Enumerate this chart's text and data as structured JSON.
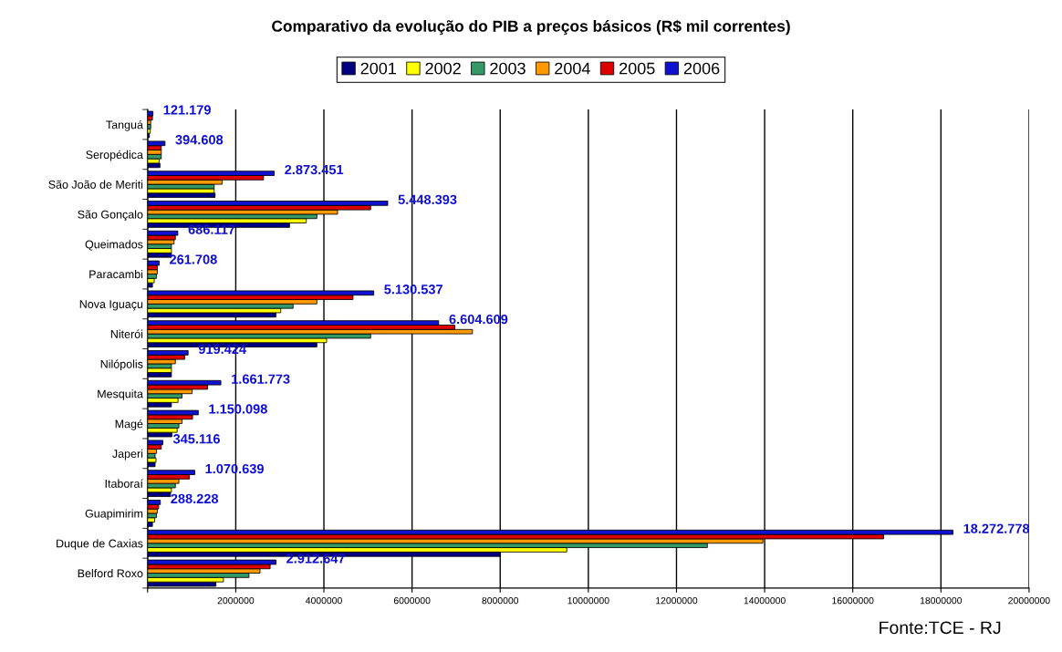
{
  "chart_data": {
    "type": "bar",
    "orientation": "horizontal",
    "title": "Comparativo da evolução do PIB a preços básicos (R$ mil correntes)",
    "categories": [
      "Tanguá",
      "Seropédica",
      "São João de Meriti",
      "São Gonçalo",
      "Queimados",
      "Paracambi",
      "Nova Iguaçu",
      "Niterói",
      "Nilópolis",
      "Mesquita",
      "Magé",
      "Japeri",
      "Itaboraí",
      "Guapimirim",
      "Duque de Caxias",
      "Belford Roxo"
    ],
    "series": [
      {
        "name": "2001",
        "color": "#000080",
        "values": [
          40000,
          280000,
          1530000,
          3220000,
          540000,
          110000,
          2910000,
          3840000,
          540000,
          540000,
          550000,
          170000,
          520000,
          110000,
          8000000,
          1550000
        ]
      },
      {
        "name": "2002",
        "color": "#ffff00",
        "values": [
          60000,
          260000,
          1510000,
          3600000,
          540000,
          150000,
          3020000,
          4060000,
          540000,
          690000,
          670000,
          190000,
          540000,
          160000,
          9510000,
          1720000
        ]
      },
      {
        "name": "2003",
        "color": "#339966",
        "values": [
          70000,
          310000,
          1510000,
          3840000,
          540000,
          200000,
          3300000,
          5060000,
          540000,
          780000,
          710000,
          170000,
          630000,
          200000,
          12700000,
          2300000
        ]
      },
      {
        "name": "2004",
        "color": "#ff9900",
        "values": [
          70000,
          310000,
          1690000,
          4310000,
          600000,
          220000,
          3840000,
          7370000,
          630000,
          1010000,
          780000,
          200000,
          710000,
          220000,
          13960000,
          2550000
        ]
      },
      {
        "name": "2005",
        "color": "#dd0000",
        "values": [
          110000,
          310000,
          2630000,
          5060000,
          630000,
          220000,
          4660000,
          6970000,
          840000,
          1360000,
          1020000,
          310000,
          950000,
          250000,
          16700000,
          2780000
        ]
      },
      {
        "name": "2006",
        "color": "#1010d0",
        "values": [
          121179,
          394608,
          2873451,
          5448393,
          686117,
          261708,
          5130537,
          6604609,
          919424,
          1661773,
          1150098,
          345116,
          1070639,
          288228,
          18272778,
          2912647
        ],
        "value_labels": [
          "121.179",
          "394.608",
          "2.873.451",
          "5.448.393",
          "686.117",
          "261.708",
          "5.130.537",
          "6.604.609",
          "919.424",
          "1.661.773",
          "1.150.098",
          "345.116",
          "1.070.639",
          "288.228",
          "18.272.778",
          "2.912.647"
        ]
      }
    ],
    "xlim": [
      0,
      20000000
    ],
    "xticks": [
      {
        "value": 0,
        "label": null
      },
      2000000,
      4000000,
      6000000,
      8000000,
      10000000,
      12000000,
      14000000,
      16000000,
      18000000,
      20000000
    ],
    "grid": "x",
    "legend": "top",
    "annotations": [
      "Fonte:TCE - RJ"
    ]
  }
}
